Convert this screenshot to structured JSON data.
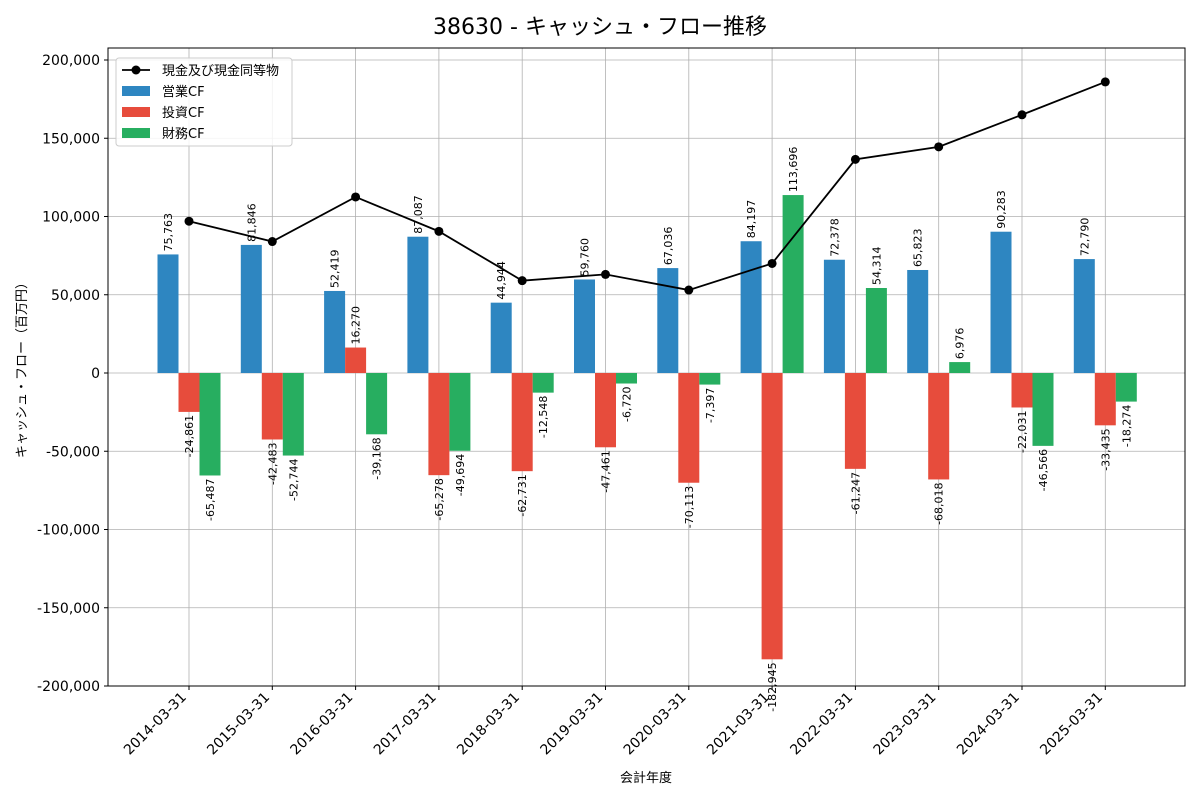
{
  "chart_data": {
    "type": "bar",
    "title": "38630 - キャッシュ・フロー推移",
    "xlabel": "会計年度",
    "ylabel": "キャッシュ・フロー（百万円）",
    "ylim": [
      -200000,
      200000
    ],
    "yticks": [
      200000,
      150000,
      100000,
      50000,
      0,
      -50000,
      -100000,
      -150000,
      -200000
    ],
    "ytick_labels": [
      "200,000",
      "150,000",
      "100,000",
      "50,000",
      "0",
      "-50,000",
      "-100,000",
      "-150,000",
      "-200,000"
    ],
    "categories": [
      "2014-03-31",
      "2015-03-31",
      "2016-03-31",
      "2017-03-31",
      "2018-03-31",
      "2019-03-31",
      "2020-03-31",
      "2021-03-31",
      "2022-03-31",
      "2023-03-31",
      "2024-03-31",
      "2025-03-31"
    ],
    "grid": true,
    "legend_position": "top-left",
    "series": [
      {
        "name": "営業CF",
        "kind": "bar",
        "color": "#2e86c1",
        "values": [
          75763,
          81846,
          52419,
          87087,
          44944,
          59760,
          67036,
          84197,
          72378,
          65823,
          90283,
          72790
        ],
        "labels": [
          "75,763",
          "81,846",
          "52,419",
          "87,087",
          "44,944",
          "59,760",
          "67,036",
          "84,197",
          "72,378",
          "65,823",
          "90,283",
          "72,790"
        ]
      },
      {
        "name": "投資CF",
        "kind": "bar",
        "color": "#e74c3c",
        "values": [
          -24861,
          -42483,
          16270,
          -65278,
          -62731,
          -47461,
          -70113,
          -182945,
          -61247,
          -68018,
          -22031,
          -33435
        ],
        "labels": [
          "-24,861",
          "-42,483",
          "16,270",
          "-65,278",
          "-62,731",
          "-47,461",
          "-70,113",
          "-182,945",
          "-61,247",
          "-68,018",
          "-22,031",
          "-33,435"
        ]
      },
      {
        "name": "財務CF",
        "kind": "bar",
        "color": "#27ae60",
        "values": [
          -65487,
          -52744,
          -39168,
          -49694,
          -12548,
          -6720,
          -7397,
          113696,
          54314,
          6976,
          -46566,
          -18274
        ],
        "labels": [
          "-65,487",
          "-52,744",
          "-39,168",
          "-49,694",
          "-12,548",
          "-6,720",
          "-7,397",
          "113,696",
          "54,314",
          "6,976",
          "-46,566",
          "-18,274"
        ]
      },
      {
        "name": "現金及び現金同等物",
        "kind": "line",
        "color": "#000000",
        "values": [
          97000,
          84000,
          112500,
          90500,
          59000,
          63000,
          53000,
          70000,
          136500,
          144500,
          165000,
          186000
        ]
      }
    ]
  }
}
